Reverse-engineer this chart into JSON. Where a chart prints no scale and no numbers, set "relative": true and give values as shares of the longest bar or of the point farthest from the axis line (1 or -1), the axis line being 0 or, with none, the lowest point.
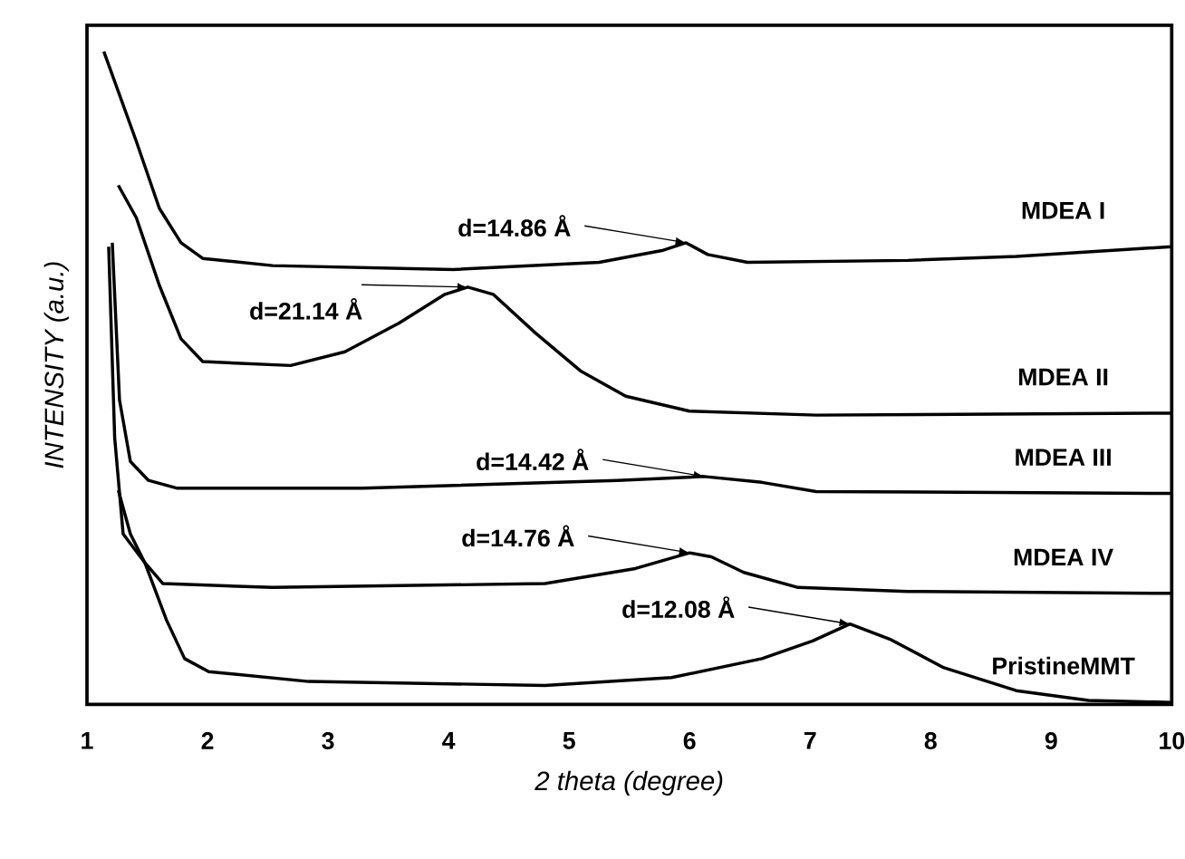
{
  "chart_data": {
    "type": "line",
    "relative": true,
    "xlabel": "2 theta (degree)",
    "ylabel": "INTENSITY (a.u.)",
    "xlim": [
      1,
      10
    ],
    "xticks": [
      1,
      2,
      3,
      4,
      5,
      6,
      7,
      8,
      9,
      10
    ],
    "grid": false,
    "marker": "none",
    "line_style": "solid",
    "series": [
      {
        "name": "MDEA I",
        "color": "#000000",
        "x": [
          1.14,
          1.41,
          1.6,
          1.78,
          1.96,
          2.54,
          4.04,
          5.25,
          5.77,
          5.97,
          6.15,
          6.48,
          7.81,
          8.71,
          10
        ],
        "values": [
          1.0,
          0.862,
          0.76,
          0.707,
          0.683,
          0.672,
          0.666,
          0.677,
          0.695,
          0.707,
          0.689,
          0.677,
          0.68,
          0.686,
          0.701
        ]
      },
      {
        "name": "MDEA II",
        "color": "#000000",
        "x": [
          1.26,
          1.41,
          1.6,
          1.78,
          1.96,
          2.69,
          3.14,
          3.59,
          3.97,
          4.16,
          4.37,
          4.72,
          5.1,
          5.47,
          6.0,
          7.05,
          10
        ],
        "values": [
          0.795,
          0.745,
          0.642,
          0.56,
          0.525,
          0.519,
          0.54,
          0.584,
          0.628,
          0.639,
          0.628,
          0.569,
          0.51,
          0.472,
          0.449,
          0.443,
          0.446
        ]
      },
      {
        "name": "MDEA III",
        "color": "#000000",
        "x": [
          1.21,
          1.27,
          1.36,
          1.51,
          1.75,
          3.29,
          5.4,
          6.12,
          6.6,
          7.05,
          10
        ],
        "values": [
          0.707,
          0.466,
          0.372,
          0.343,
          0.331,
          0.331,
          0.343,
          0.349,
          0.34,
          0.326,
          0.323
        ]
      },
      {
        "name": "MDEA IV",
        "color": "#000000",
        "x": [
          1.26,
          1.36,
          1.48,
          1.63,
          2.54,
          4.8,
          5.55,
          6.0,
          6.18,
          6.45,
          6.9,
          7.81,
          10
        ],
        "values": [
          0.328,
          0.261,
          0.217,
          0.185,
          0.179,
          0.185,
          0.208,
          0.232,
          0.226,
          0.202,
          0.179,
          0.173,
          0.17
        ]
      },
      {
        "name": "PristineMMT",
        "color": "#000000",
        "x": [
          1.18,
          1.23,
          1.3,
          1.48,
          1.66,
          1.81,
          2.01,
          2.84,
          4.8,
          5.85,
          6.6,
          7.02,
          7.33,
          7.66,
          8.11,
          8.71,
          9.31,
          10
        ],
        "values": [
          0.701,
          0.408,
          0.261,
          0.217,
          0.129,
          0.07,
          0.05,
          0.035,
          0.029,
          0.041,
          0.07,
          0.097,
          0.123,
          0.1,
          0.056,
          0.021,
          0.006,
          0.003
        ]
      }
    ],
    "annotations": [
      {
        "text": "d=14.86 Å",
        "x": 5.97,
        "y": 0.707
      },
      {
        "text": "d=21.14 Å",
        "x": 4.16,
        "y": 0.639
      },
      {
        "text": "d=14.42 Å",
        "x": 6.12,
        "y": 0.349
      },
      {
        "text": "d=14.76 Å",
        "x": 6.0,
        "y": 0.232
      },
      {
        "text": "d=12.08 Å",
        "x": 7.33,
        "y": 0.123
      }
    ]
  }
}
